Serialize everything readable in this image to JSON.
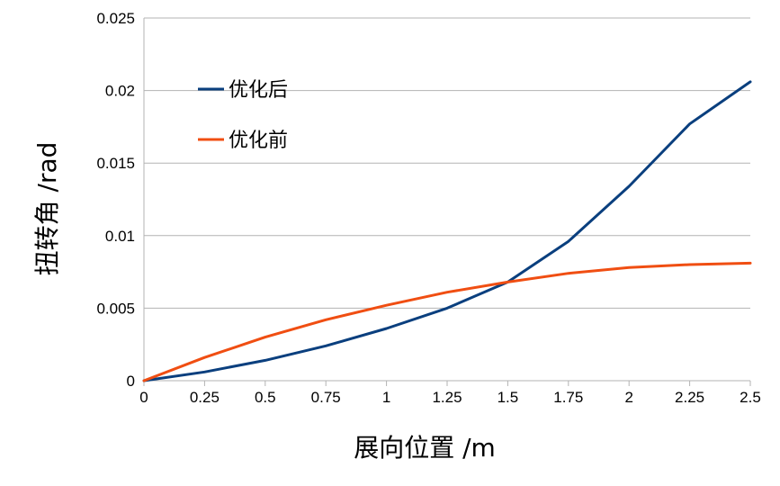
{
  "chart_data": {
    "type": "line",
    "xlabel": "展向位置 /m",
    "ylabel": "扭转角 /rad",
    "xlim": [
      0,
      2.5
    ],
    "ylim": [
      0,
      0.025
    ],
    "x_ticks": [
      "0",
      "0.25",
      "0.5",
      "0.75",
      "1",
      "1.25",
      "1.5",
      "1.75",
      "2",
      "2.25",
      "2.5"
    ],
    "y_ticks": [
      "0",
      "0.005",
      "0.01",
      "0.015",
      "0.02",
      "0.025"
    ],
    "grid": "horizontal",
    "legend_position": "top-left",
    "x": [
      0,
      0.25,
      0.5,
      0.75,
      1,
      1.25,
      1.5,
      1.75,
      2,
      2.25,
      2.5
    ],
    "series": [
      {
        "name": "优化后",
        "color": "#0a3f7e",
        "values": [
          0,
          0.0006,
          0.0014,
          0.0024,
          0.0036,
          0.005,
          0.0068,
          0.0096,
          0.0134,
          0.0177,
          0.0206
        ]
      },
      {
        "name": "优化前",
        "color": "#f04e12",
        "values": [
          0,
          0.0016,
          0.003,
          0.0042,
          0.0052,
          0.0061,
          0.0068,
          0.0074,
          0.0078,
          0.008,
          0.0081
        ]
      }
    ]
  }
}
